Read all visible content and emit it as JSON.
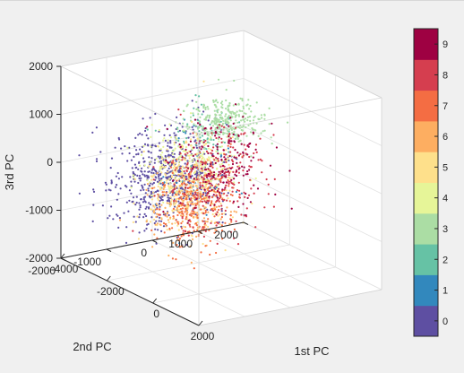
{
  "chart_data": {
    "type": "scatter",
    "subtype": "3d-scatter",
    "view": "3d",
    "title": "",
    "xlabel": "1st PC",
    "ylabel": "2nd PC",
    "zlabel": "3rd PC",
    "xlim": [
      -4000,
      2000
    ],
    "ylim": [
      -2000,
      2000
    ],
    "zlim": [
      -2000,
      2000
    ],
    "xticks": [
      "-4000",
      "-2000",
      "0",
      "2000"
    ],
    "yticks": [
      "-2000",
      "-1000",
      "0",
      "1000",
      "2000"
    ],
    "zticks": [
      "-2000",
      "-1000",
      "0",
      "1000",
      "2000"
    ],
    "grid": true,
    "box": true,
    "colormap": "spectral",
    "colorbar": {
      "location": "right",
      "classes": [
        "0",
        "1",
        "2",
        "3",
        "4",
        "5",
        "6",
        "7",
        "8",
        "9"
      ],
      "colors": [
        "#5e4fa2",
        "#3288bd",
        "#66c2a5",
        "#abdda4",
        "#e6f598",
        "#fee08b",
        "#fdae61",
        "#f46d43",
        "#d53e4f",
        "#9e0142"
      ]
    },
    "series": [
      {
        "class": 0,
        "color": "#5e4fa2",
        "center": [
          -2900,
          -200,
          -400
        ],
        "spread": [
          500,
          550,
          500
        ],
        "count": 650
      },
      {
        "class": 1,
        "color": "#3288bd",
        "center": [
          -2400,
          100,
          -300
        ],
        "spread": [
          500,
          500,
          500
        ],
        "count": 40
      },
      {
        "class": 2,
        "color": "#66c2a5",
        "center": [
          -2300,
          300,
          650
        ],
        "spread": [
          400,
          400,
          250
        ],
        "count": 60
      },
      {
        "class": 3,
        "color": "#abdda4",
        "center": [
          -2100,
          650,
          800
        ],
        "spread": [
          500,
          350,
          200
        ],
        "count": 320
      },
      {
        "class": 4,
        "color": "#e6f598",
        "center": [
          -1600,
          -400,
          250
        ],
        "spread": [
          500,
          450,
          300
        ],
        "count": 220
      },
      {
        "class": 5,
        "color": "#fee08b",
        "center": [
          -1300,
          -600,
          -200
        ],
        "spread": [
          450,
          400,
          450
        ],
        "count": 320
      },
      {
        "class": 6,
        "color": "#fdae61",
        "center": [
          -900,
          -800,
          -400
        ],
        "spread": [
          350,
          400,
          400
        ],
        "count": 180
      },
      {
        "class": 7,
        "color": "#f46d43",
        "center": [
          -500,
          -800,
          -250
        ],
        "spread": [
          250,
          400,
          450
        ],
        "count": 220
      },
      {
        "class": 8,
        "color": "#d53e4f",
        "center": [
          -800,
          -300,
          100
        ],
        "spread": [
          450,
          500,
          550
        ],
        "count": 260
      },
      {
        "class": 9,
        "color": "#9e0142",
        "center": [
          -1100,
          100,
          300
        ],
        "spread": [
          500,
          500,
          500
        ],
        "count": 170
      }
    ]
  }
}
